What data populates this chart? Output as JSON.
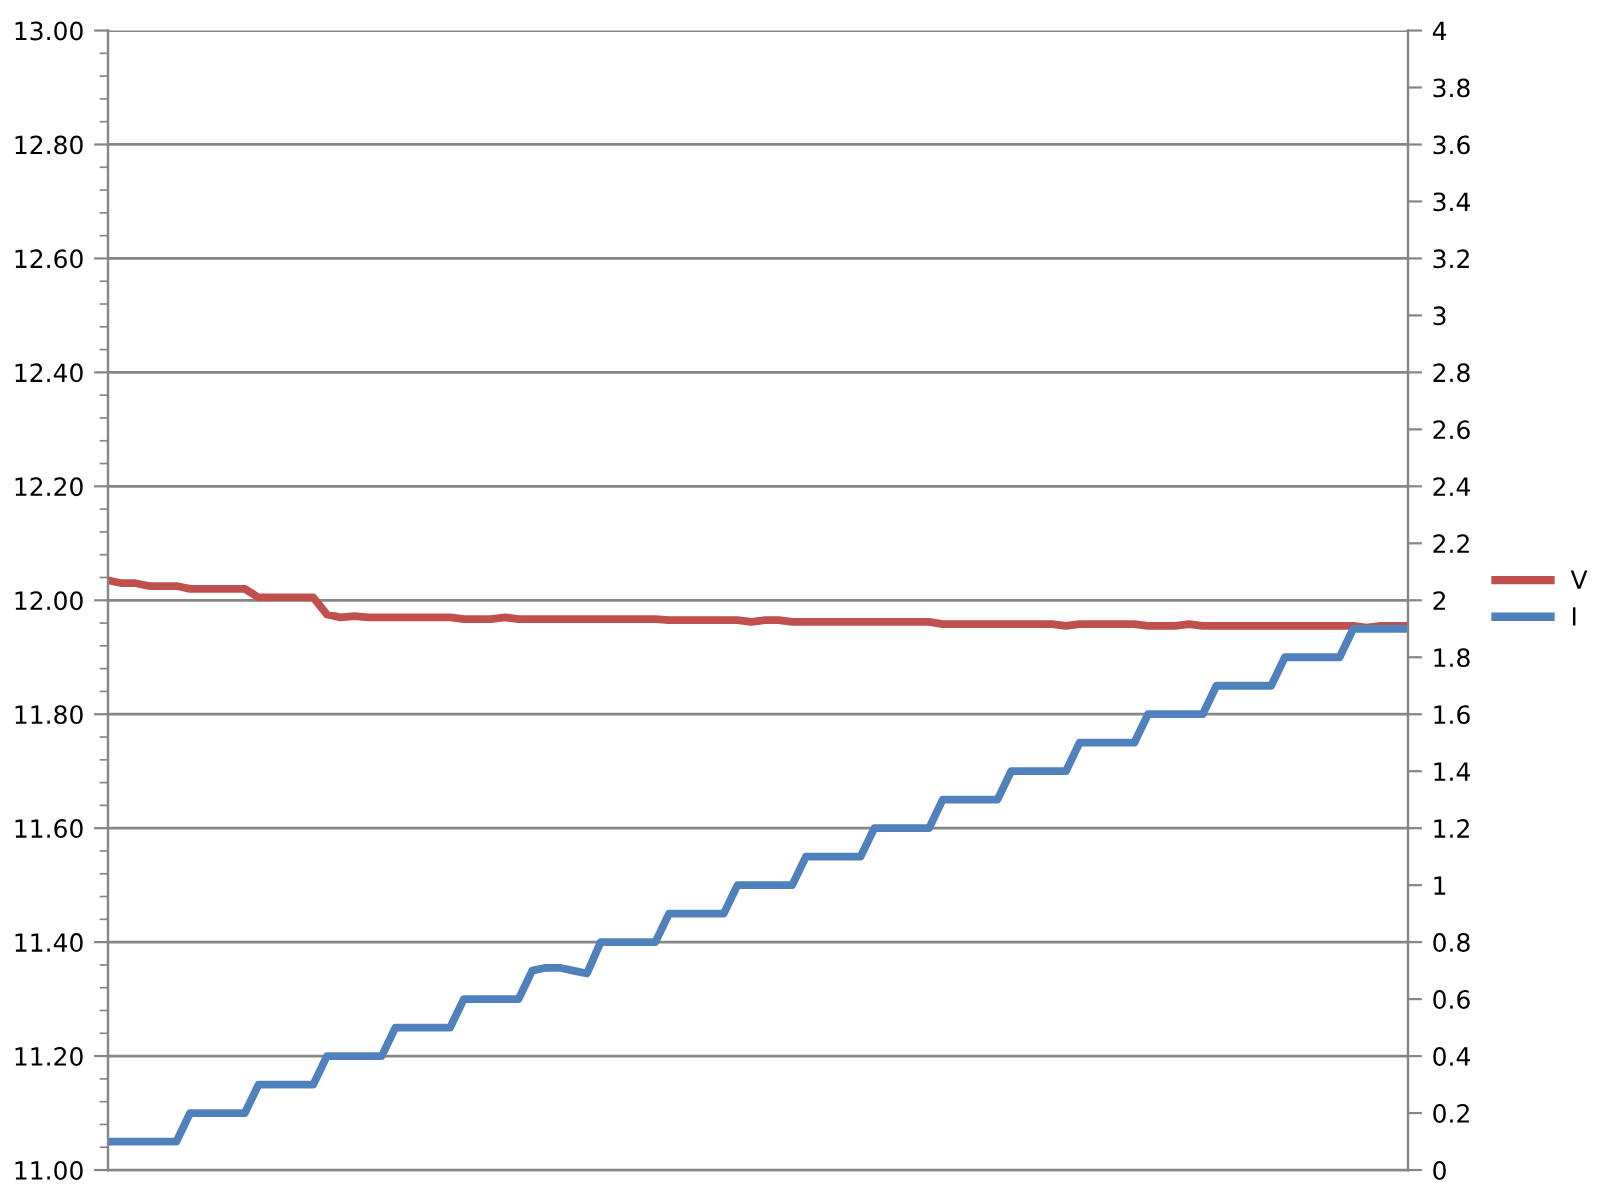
{
  "chart_data": {
    "type": "line",
    "categories": [
      null,
      null,
      null,
      null,
      null,
      null,
      null,
      null,
      null,
      null,
      null,
      null,
      null,
      null,
      null,
      null,
      null,
      null,
      null,
      null,
      null,
      null,
      null,
      null,
      null,
      null,
      null,
      null,
      null,
      null,
      null,
      null,
      null,
      null,
      null,
      null,
      null,
      null,
      null,
      null,
      null,
      null,
      null,
      null,
      null,
      null,
      null,
      null,
      null,
      null,
      null,
      null,
      null,
      null,
      null,
      null,
      null,
      null,
      null,
      null,
      null,
      null,
      null,
      null,
      null,
      null,
      null,
      null,
      null,
      null,
      null,
      null,
      null,
      null,
      null,
      null,
      null,
      null,
      null,
      null,
      null,
      null,
      null,
      null,
      null,
      null,
      null,
      null,
      null,
      null,
      null,
      null,
      null,
      null,
      null,
      null
    ],
    "series": [
      {
        "name": "V",
        "color": "#c0504d",
        "values": [
          12.035,
          12.03,
          12.03,
          12.025,
          12.025,
          12.025,
          12.02,
          12.02,
          12.02,
          12.02,
          12.02,
          12.005,
          12.005,
          12.005,
          12.005,
          12.005,
          11.975,
          11.97,
          11.972,
          11.97,
          11.97,
          11.97,
          11.97,
          11.97,
          11.97,
          11.97,
          11.967,
          11.967,
          11.967,
          11.97,
          11.967,
          11.967,
          11.967,
          11.967,
          11.967,
          11.967,
          11.967,
          11.967,
          11.967,
          11.967,
          11.967,
          11.965,
          11.965,
          11.965,
          11.965,
          11.965,
          11.965,
          11.962,
          11.965,
          11.965,
          11.962,
          11.962,
          11.962,
          11.962,
          11.962,
          11.962,
          11.962,
          11.962,
          11.962,
          11.962,
          11.962,
          11.958,
          11.958,
          11.958,
          11.958,
          11.958,
          11.958,
          11.958,
          11.958,
          11.958,
          11.955,
          11.958,
          11.958,
          11.958,
          11.958,
          11.958,
          11.955,
          11.955,
          11.955,
          11.958,
          11.955,
          11.955,
          11.955,
          11.955,
          11.955,
          11.955,
          11.955,
          11.955,
          11.955,
          11.955,
          11.955,
          11.955,
          11.952,
          11.955,
          11.955,
          11.955
        ]
      },
      {
        "name": "I",
        "color": "#4f81bd",
        "axis": "y2",
        "values": [
          0.1,
          0.1,
          0.1,
          0.1,
          0.1,
          0.1,
          0.2,
          0.2,
          0.2,
          0.2,
          0.2,
          0.3,
          0.3,
          0.3,
          0.3,
          0.3,
          0.4,
          0.4,
          0.4,
          0.4,
          0.4,
          0.5,
          0.5,
          0.5,
          0.5,
          0.5,
          0.6,
          0.6,
          0.6,
          0.6,
          0.6,
          0.7,
          0.71,
          0.71,
          0.7,
          0.69,
          0.8,
          0.8,
          0.8,
          0.8,
          0.8,
          0.9,
          0.9,
          0.9,
          0.9,
          0.9,
          1,
          1,
          1,
          1,
          1,
          1.1,
          1.1,
          1.1,
          1.1,
          1.1,
          1.2,
          1.2,
          1.2,
          1.2,
          1.2,
          1.3,
          1.3,
          1.3,
          1.3,
          1.3,
          1.4,
          1.4,
          1.4,
          1.4,
          1.4,
          1.5,
          1.5,
          1.5,
          1.5,
          1.5,
          1.6,
          1.6,
          1.6,
          1.6,
          1.6,
          1.7,
          1.7,
          1.7,
          1.7,
          1.7,
          1.8,
          1.8,
          1.8,
          1.8,
          1.8,
          1.9,
          1.9,
          1.9,
          1.9,
          1.9
        ]
      }
    ],
    "ylim": [
      11,
      13
    ],
    "yticks": [
      {
        "value": 11,
        "label": "11.00"
      },
      {
        "value": 11.04,
        "label": null
      },
      {
        "value": 11.08,
        "label": null
      },
      {
        "value": 11.12,
        "label": null
      },
      {
        "value": 11.16,
        "label": null
      },
      {
        "value": 11.2,
        "label": "11.20"
      },
      {
        "value": 11.24,
        "label": null
      },
      {
        "value": 11.28,
        "label": null
      },
      {
        "value": 11.32,
        "label": null
      },
      {
        "value": 11.36,
        "label": null
      },
      {
        "value": 11.4,
        "label": "11.40"
      },
      {
        "value": 11.44,
        "label": null
      },
      {
        "value": 11.48,
        "label": null
      },
      {
        "value": 11.52,
        "label": null
      },
      {
        "value": 11.56,
        "label": null
      },
      {
        "value": 11.6,
        "label": "11.60"
      },
      {
        "value": 11.64,
        "label": null
      },
      {
        "value": 11.68,
        "label": null
      },
      {
        "value": 11.72,
        "label": null
      },
      {
        "value": 11.76,
        "label": null
      },
      {
        "value": 11.8,
        "label": "11.80"
      },
      {
        "value": 11.84,
        "label": null
      },
      {
        "value": 11.88,
        "label": null
      },
      {
        "value": 11.92,
        "label": null
      },
      {
        "value": 11.96,
        "label": null
      },
      {
        "value": 12,
        "label": "12.00"
      },
      {
        "value": 12.04,
        "label": null
      },
      {
        "value": 12.08,
        "label": null
      },
      {
        "value": 12.12,
        "label": null
      },
      {
        "value": 12.16,
        "label": null
      },
      {
        "value": 12.2,
        "label": "12.20"
      },
      {
        "value": 12.24,
        "label": null
      },
      {
        "value": 12.28,
        "label": null
      },
      {
        "value": 12.32,
        "label": null
      },
      {
        "value": 12.36,
        "label": null
      },
      {
        "value": 12.4,
        "label": "12.40"
      },
      {
        "value": 12.44,
        "label": null
      },
      {
        "value": 12.48,
        "label": null
      },
      {
        "value": 12.52,
        "label": null
      },
      {
        "value": 12.56,
        "label": null
      },
      {
        "value": 12.6,
        "label": "12.60"
      },
      {
        "value": 12.64,
        "label": null
      },
      {
        "value": 12.68,
        "label": null
      },
      {
        "value": 12.72,
        "label": null
      },
      {
        "value": 12.76,
        "label": null
      },
      {
        "value": 12.8,
        "label": "12.80"
      },
      {
        "value": 12.84,
        "label": null
      },
      {
        "value": 12.88,
        "label": null
      },
      {
        "value": 12.92,
        "label": null
      },
      {
        "value": 12.96,
        "label": null
      },
      {
        "value": 13,
        "label": "13.00"
      }
    ],
    "y2lim": [
      0,
      4
    ],
    "y2ticks": [
      0,
      0.2,
      0.4,
      0.6,
      0.8,
      1,
      1.2,
      1.4,
      1.6,
      1.8,
      2,
      2.2,
      2.4,
      2.6,
      2.8,
      3,
      3.2,
      3.4,
      3.6,
      3.8,
      4
    ],
    "grid": "y",
    "legend": "right",
    "marker": "none",
    "line_style": "solid"
  }
}
